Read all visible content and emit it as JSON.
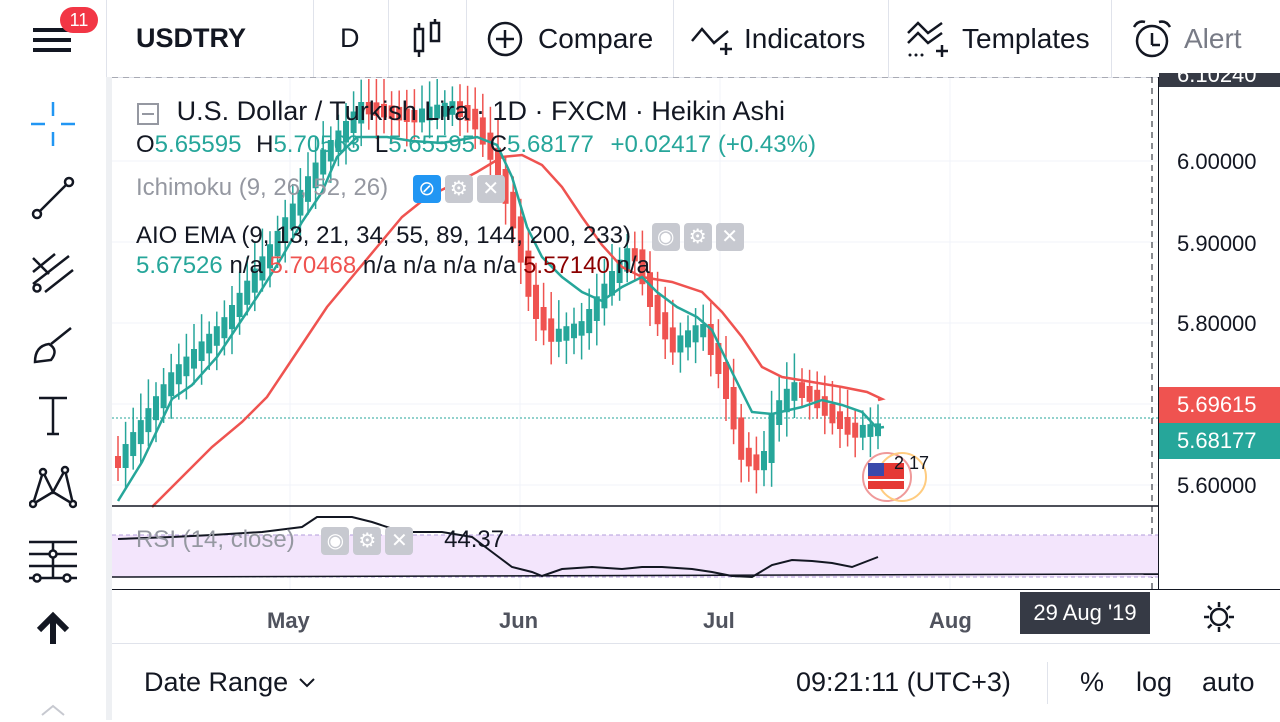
{
  "topbar": {
    "notification_count": "11",
    "symbol": "USDTRY",
    "interval": "D",
    "compare_label": "Compare",
    "indicators_label": "Indicators",
    "templates_label": "Templates",
    "alert_label": "Alert"
  },
  "legend": {
    "title_name": "U.S. Dollar / Turkish Lira",
    "title_meta": "· 1D · FXCM · Heikin Ashi",
    "ohlc": {
      "o_label": "O",
      "o_value": "5.65595",
      "h_label": "H",
      "h_value": "5.70563",
      "l_label": "L",
      "l_value": "5.65595",
      "c_label": "C",
      "c_value": "5.68177",
      "change": "+0.02417 (+0.43%)"
    },
    "ichimoku": "Ichimoku (9, 26, 52, 26)",
    "aio_ema": {
      "label": "AIO EMA (9, 13, 21, 34, 55, 89, 144, 200, 233)",
      "v1": "5.67526",
      "na1": "n/a",
      "v2": "5.70468",
      "na2": "n/a n/a n/a n/a",
      "v3": "5.57140",
      "na3": "n/a"
    }
  },
  "rsi": {
    "label": "RSI (14, close)",
    "value": "44.37"
  },
  "price_axis": {
    "top_cut": "6.10240",
    "ticks": [
      "6.00000",
      "5.90000",
      "5.80000",
      "5.60000"
    ],
    "red_tag": "5.69615",
    "teal_tag": "5.68177"
  },
  "time_axis": {
    "months": [
      "May",
      "Jun",
      "Jul",
      "Aug"
    ],
    "crosshair_date": "29 Aug '19"
  },
  "event_marker_text": "2 17",
  "bottombar": {
    "date_range": "Date Range",
    "time": "09:21:11 (UTC+3)",
    "percent": "%",
    "log": "log",
    "auto": "auto"
  },
  "colors": {
    "up": "#26a69a",
    "down": "#ef5350",
    "ema_fast": "#26a69a",
    "ema_slow": "#ef5350",
    "rsi_band": "#f3e5fc",
    "accent": "#2196f3"
  },
  "chart_data": {
    "type": "candlestick-heikin-ashi",
    "y_range": [
      5.57,
      6.11
    ],
    "x_labels": [
      "May",
      "Jun",
      "Jul",
      "Aug"
    ],
    "last_close": 5.68177,
    "ema_9_last": 5.67526,
    "ema_21_last": 5.70468,
    "rsi_last": 44.37
  }
}
